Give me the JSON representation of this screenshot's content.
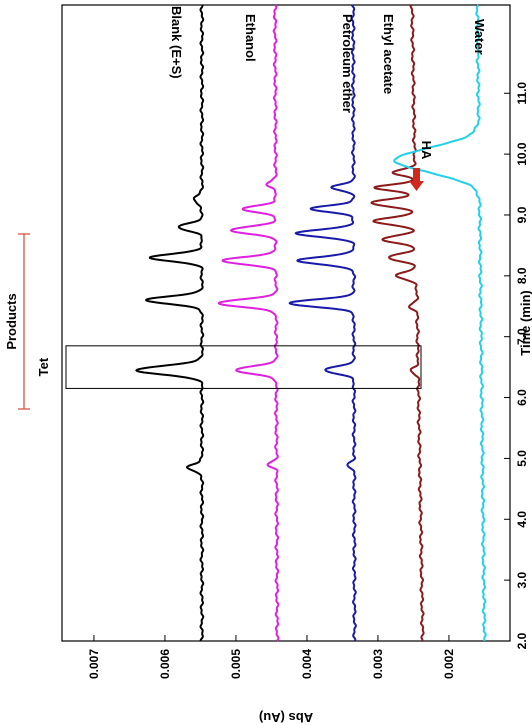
{
  "chart_data": {
    "type": "line",
    "orientation": "rotated-90-cw",
    "xlabel": "Time (min)",
    "ylabel": "Abs (Au)",
    "xlim": [
      2.0,
      12.45
    ],
    "ylim": [
      0.00114,
      0.00745
    ],
    "x_ticks": [
      "2.0",
      "3.0",
      "4.0",
      "5.0",
      "6.0",
      "7.0",
      "8.0",
      "9.0",
      "10.0",
      "11.0"
    ],
    "y_ticks": [
      "0.002",
      "0.003",
      "0.004",
      "0.005",
      "0.006",
      "0.007"
    ],
    "series": [
      {
        "name": "Blank (E+S)",
        "color": "#000000",
        "baseline": 0.00548,
        "end": 0.00548,
        "peaks": [
          [
            4.85,
            0.00022,
            0.05
          ],
          [
            6.45,
            0.00093,
            0.07
          ],
          [
            7.6,
            0.0008,
            0.06
          ],
          [
            8.3,
            0.00072,
            0.06
          ],
          [
            8.8,
            0.00032,
            0.06
          ],
          [
            9.25,
            0.00012,
            0.06
          ]
        ]
      },
      {
        "name": "Ethanol",
        "color": "#e020e0",
        "baseline": 0.00442,
        "end": 0.00445,
        "peaks": [
          [
            4.9,
            0.00012,
            0.04
          ],
          [
            6.45,
            0.00058,
            0.06
          ],
          [
            7.55,
            0.00082,
            0.06
          ],
          [
            8.25,
            0.00075,
            0.06
          ],
          [
            8.75,
            0.00062,
            0.06
          ],
          [
            9.1,
            0.00048,
            0.05
          ],
          [
            9.5,
            0.00012,
            0.05
          ]
        ]
      },
      {
        "name": "Petroleum ether",
        "color": "#1a1aa8",
        "baseline": 0.00333,
        "end": 0.00335,
        "peaks": [
          [
            4.9,
            0.0001,
            0.04
          ],
          [
            6.45,
            0.0004,
            0.06
          ],
          [
            7.55,
            0.0009,
            0.06
          ],
          [
            8.25,
            0.0008,
            0.06
          ],
          [
            8.7,
            0.0008,
            0.06
          ],
          [
            9.1,
            0.00062,
            0.05
          ],
          [
            9.45,
            0.0003,
            0.05
          ]
        ]
      },
      {
        "name": "Ethyl acetate",
        "color": "#8b1a1a",
        "baseline": 0.00237,
        "end": 0.00252,
        "peaks": [
          [
            6.45,
            0.0001,
            0.05
          ],
          [
            7.5,
            0.0001,
            0.05
          ],
          [
            8.0,
            0.00028,
            0.06
          ],
          [
            8.3,
            0.00038,
            0.06
          ],
          [
            8.6,
            0.00046,
            0.06
          ],
          [
            8.9,
            0.00058,
            0.06
          ],
          [
            9.2,
            0.00062,
            0.06
          ],
          [
            9.45,
            0.00056,
            0.05
          ],
          [
            9.7,
            0.0003,
            0.05
          ]
        ]
      },
      {
        "name": "Water",
        "color": "#22d0e8",
        "baseline": 0.0015,
        "end": 0.0016,
        "peaks": [
          [
            9.9,
            0.00118,
            0.2
          ]
        ]
      }
    ],
    "annotations": {
      "tet": "Tet",
      "products": "Products",
      "ha": "HA",
      "ha_color": "#d0281e",
      "products_bracket_color": "#d04a3a",
      "tet_box_range": [
        6.15,
        6.85
      ]
    },
    "grid": false
  }
}
